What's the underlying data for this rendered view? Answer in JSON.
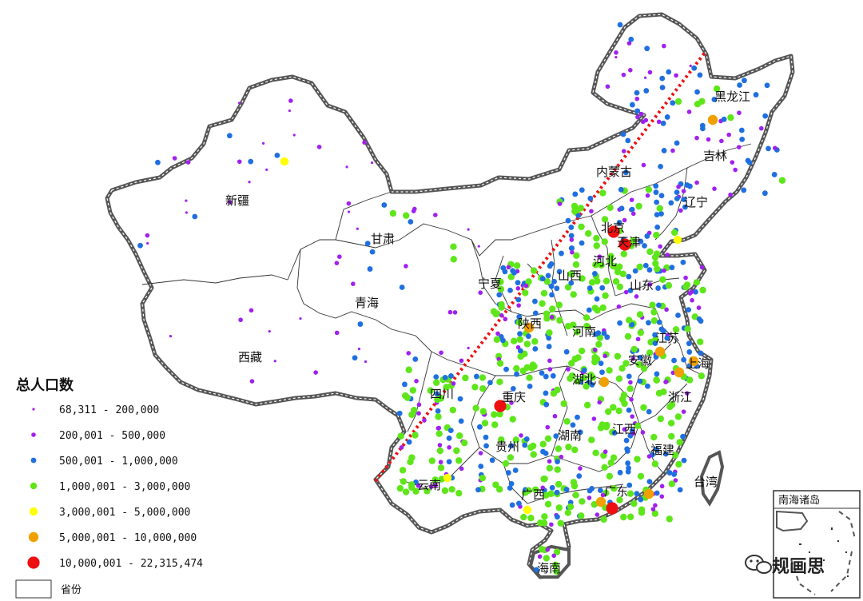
{
  "colors": {
    "tier1": "#a020f0",
    "tier2": "#a020f0",
    "tier3": "#1f6fe0",
    "tier4": "#5ee61a",
    "tier5": "#ffff00",
    "tier6": "#f0a000",
    "tier7": "#ee1010",
    "line": "#ee1010",
    "border": "#333333"
  },
  "provinces": [
    {
      "id": "xinjiang",
      "name": "新疆"
    },
    {
      "id": "xizang",
      "name": "西藏"
    },
    {
      "id": "qinghai",
      "name": "青海"
    },
    {
      "id": "gansu",
      "name": "甘肃"
    },
    {
      "id": "neimenggu",
      "name": "内蒙古"
    },
    {
      "id": "heilongjiang",
      "name": "黑龙江"
    },
    {
      "id": "jilin",
      "name": "吉林"
    },
    {
      "id": "liaoning",
      "name": "辽宁"
    },
    {
      "id": "beijing",
      "name": "北京"
    },
    {
      "id": "tianjin",
      "name": "天津"
    },
    {
      "id": "hebei",
      "name": "河北"
    },
    {
      "id": "shanxi",
      "name": "山西"
    },
    {
      "id": "shandong",
      "name": "山东"
    },
    {
      "id": "ningxia",
      "name": "宁夏"
    },
    {
      "id": "shaanxi",
      "name": "陕西"
    },
    {
      "id": "henan",
      "name": "河南"
    },
    {
      "id": "jiangsu",
      "name": "江苏"
    },
    {
      "id": "anhui",
      "name": "安徽"
    },
    {
      "id": "shanghai",
      "name": "上海"
    },
    {
      "id": "hubei",
      "name": "湖北"
    },
    {
      "id": "sichuan",
      "name": "四川"
    },
    {
      "id": "chongqing",
      "name": "重庆"
    },
    {
      "id": "zhejiang",
      "name": "浙江"
    },
    {
      "id": "guizhou",
      "name": "贵州"
    },
    {
      "id": "hunan",
      "name": "湖南"
    },
    {
      "id": "jiangxi",
      "name": "江西"
    },
    {
      "id": "fujian",
      "name": "福建"
    },
    {
      "id": "yunnan",
      "name": "云南"
    },
    {
      "id": "guangxi",
      "name": "广西"
    },
    {
      "id": "guangdong",
      "name": "广东"
    },
    {
      "id": "taiwan",
      "name": "台湾"
    },
    {
      "id": "hainan",
      "name": "海南"
    }
  ],
  "legend": {
    "title": "总人口数",
    "items": [
      {
        "label": "68,311 - 200,000",
        "tier": 1
      },
      {
        "label": "200,001 - 500,000",
        "tier": 2
      },
      {
        "label": "500,001 - 1,000,000",
        "tier": 3
      },
      {
        "label": "1,000,001 - 3,000,000",
        "tier": 4
      },
      {
        "label": "3,000,001 - 5,000,000",
        "tier": 5
      },
      {
        "label": "5,000,001 - 10,000,000",
        "tier": 6
      },
      {
        "label": "10,000,001 - 22,315,474",
        "tier": 7
      }
    ],
    "boundary_label": "省份"
  },
  "inset": {
    "title": "南海诸岛"
  },
  "watermark": {
    "text": "规画思",
    "icon": "wechat-icon"
  }
}
